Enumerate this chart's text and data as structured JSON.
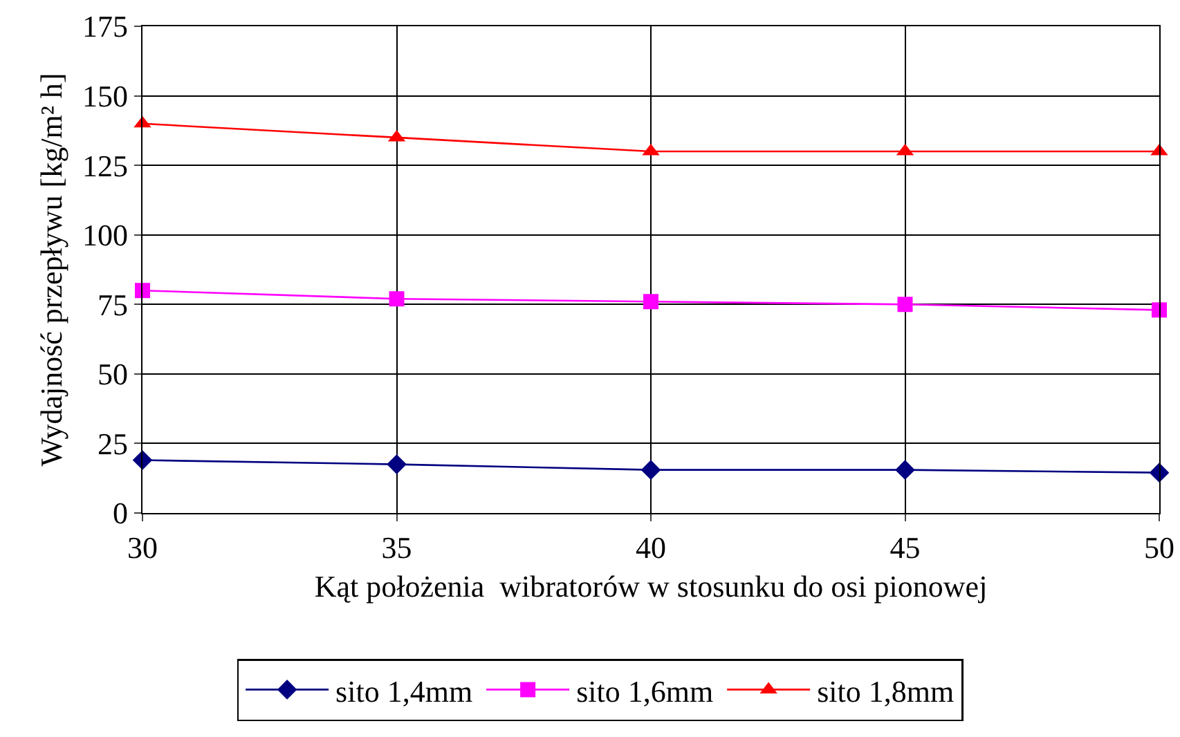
{
  "chart_data": {
    "type": "line",
    "xlabel": "Kąt położenia  wibratorów w stosunku do osi pionowej",
    "ylabel": "Wydajność przepływu [kg/m² h]",
    "x": [
      30,
      35,
      40,
      45,
      50
    ],
    "series": [
      {
        "name": "sito 1,4mm",
        "color": "#000080",
        "marker": "diamond",
        "values": [
          19,
          17.5,
          15.5,
          15.5,
          14.5
        ]
      },
      {
        "name": "sito 1,6mm",
        "color": "#ff00ff",
        "marker": "square",
        "values": [
          80,
          77,
          76,
          75,
          73
        ]
      },
      {
        "name": "sito 1,8mm",
        "color": "#ff0000",
        "marker": "triangle",
        "values": [
          140,
          135,
          130,
          130,
          130
        ]
      }
    ],
    "xlim": [
      30,
      50
    ],
    "xticks": [
      30,
      35,
      40,
      45,
      50
    ],
    "ylim": [
      0,
      175
    ],
    "yticks": [
      0,
      25,
      50,
      75,
      100,
      125,
      150,
      175
    ],
    "grid": true,
    "legend": "bottom",
    "line_style": "solid"
  }
}
